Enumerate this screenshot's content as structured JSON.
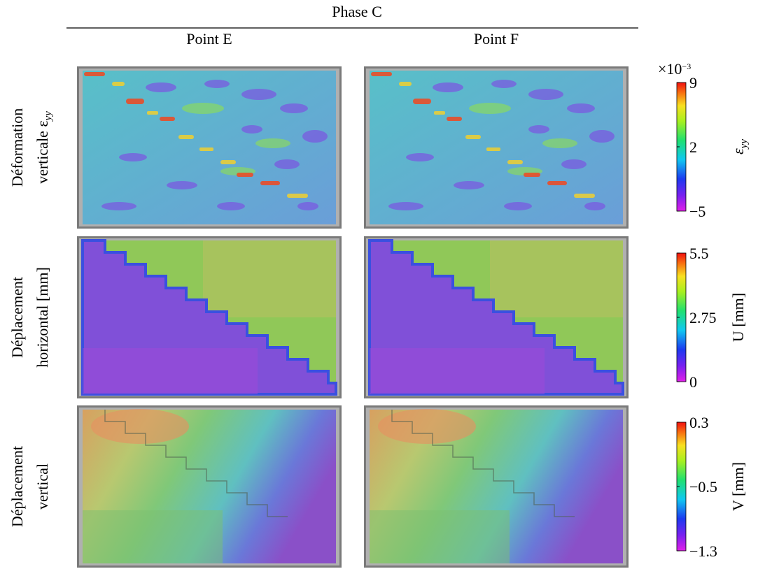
{
  "header": {
    "title": "Phase C",
    "columns": [
      "Point E",
      "Point F"
    ]
  },
  "rows": [
    {
      "label": [
        {
          "text": "Déformation"
        },
        {
          "text": "verticale ε",
          "subscript": "yy"
        }
      ],
      "colorbar": {
        "multiplier": {
          "base": "×10",
          "exponent": "−3"
        },
        "label": {
          "text": "ε",
          "subscript": "yy"
        },
        "range": [
          -5,
          9
        ],
        "ticks": [
          {
            "value": -5,
            "label": "−5"
          },
          2,
          9
        ]
      }
    },
    {
      "label": [
        {
          "text": "Déplacement"
        },
        {
          "text": "horizontal [mm]"
        }
      ],
      "colorbar": {
        "label": {
          "text": "U [mm]"
        },
        "range": [
          0,
          5.5
        ],
        "ticks": [
          0,
          2.75,
          5.5
        ]
      }
    },
    {
      "label": [
        {
          "text": "Déplacement"
        },
        {
          "text": "vertical"
        }
      ],
      "colorbar": {
        "label": {
          "text": "V [mm]"
        },
        "range": [
          -1.3,
          0.3
        ],
        "ticks": [
          {
            "value": -1.3,
            "label": "−1.3"
          },
          {
            "value": -0.5,
            "label": "−0.5"
          },
          0.3
        ]
      }
    }
  ]
}
